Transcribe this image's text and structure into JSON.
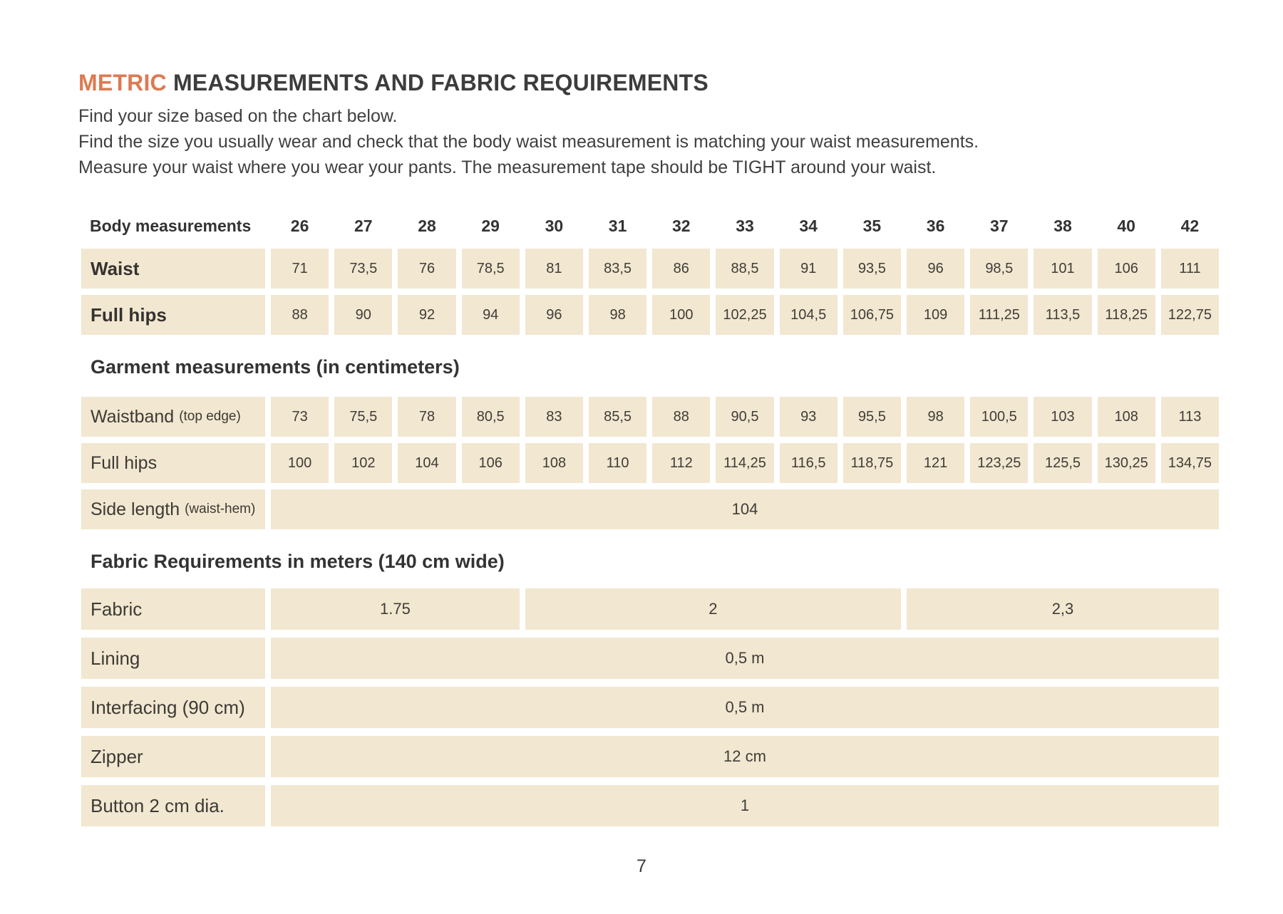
{
  "header": {
    "title_accent": "METRIC",
    "title_rest": " MEASUREMENTS AND FABRIC REQUIREMENTS",
    "intro_lines": [
      "Find your size based on the chart below.",
      "Find the size you usually wear and check that the body waist measurement is matching your waist measurements.",
      "Measure your waist where you wear your pants. The measurement tape should be TIGHT around your waist."
    ]
  },
  "colors": {
    "accent_orange": "#dd7a52",
    "cell_beige": "#f2e7d0",
    "text_dark": "#3a3a3a"
  },
  "size_table": {
    "header_label": "Body measurements",
    "sizes": [
      "26",
      "27",
      "28",
      "29",
      "30",
      "31",
      "32",
      "33",
      "34",
      "35",
      "36",
      "37",
      "38",
      "40",
      "42"
    ],
    "body_rows": [
      {
        "label": "Waist",
        "values": [
          "71",
          "73,5",
          "76",
          "78,5",
          "81",
          "83,5",
          "86",
          "88,5",
          "91",
          "93,5",
          "96",
          "98,5",
          "101",
          "106",
          "111"
        ]
      },
      {
        "label": "Full hips",
        "values": [
          "88",
          "90",
          "92",
          "94",
          "96",
          "98",
          "100",
          "102,25",
          "104,5",
          "106,75",
          "109",
          "111,25",
          "113,5",
          "118,25",
          "122,75"
        ]
      }
    ],
    "garment_heading": "Garment measurements (in centimeters)",
    "garment_rows": [
      {
        "label": "Waistband",
        "note": "(top edge)",
        "values": [
          "73",
          "75,5",
          "78",
          "80,5",
          "83",
          "85,5",
          "88",
          "90,5",
          "93",
          "95,5",
          "98",
          "100,5",
          "103",
          "108",
          "113"
        ]
      },
      {
        "label": "Full hips",
        "note": "",
        "values": [
          "100",
          "102",
          "104",
          "106",
          "108",
          "110",
          "112",
          "114,25",
          "116,5",
          "118,75",
          "121",
          "123,25",
          "125,5",
          "130,25",
          "134,75"
        ]
      }
    ],
    "side_length": {
      "label": "Side length",
      "note": "(waist-hem)",
      "value": "104"
    }
  },
  "fabric_section": {
    "heading": "Fabric Requirements in meters (140 cm wide)",
    "fabric_row": {
      "label": "Fabric",
      "segments": [
        {
          "value": "1.75",
          "span": 4,
          "sizes": "26–29"
        },
        {
          "value": "2",
          "span": 6,
          "sizes": "30–35"
        },
        {
          "value": "2,3",
          "span": 5,
          "sizes": "36–42"
        }
      ]
    },
    "rows": [
      {
        "label": "Lining",
        "value": "0,5 m"
      },
      {
        "label": "Interfacing (90 cm)",
        "value": "0,5 m"
      },
      {
        "label": "Zipper",
        "value": "12 cm"
      },
      {
        "label": "Button 2 cm dia.",
        "value": "1"
      }
    ]
  },
  "footer": {
    "page_number": "7"
  }
}
